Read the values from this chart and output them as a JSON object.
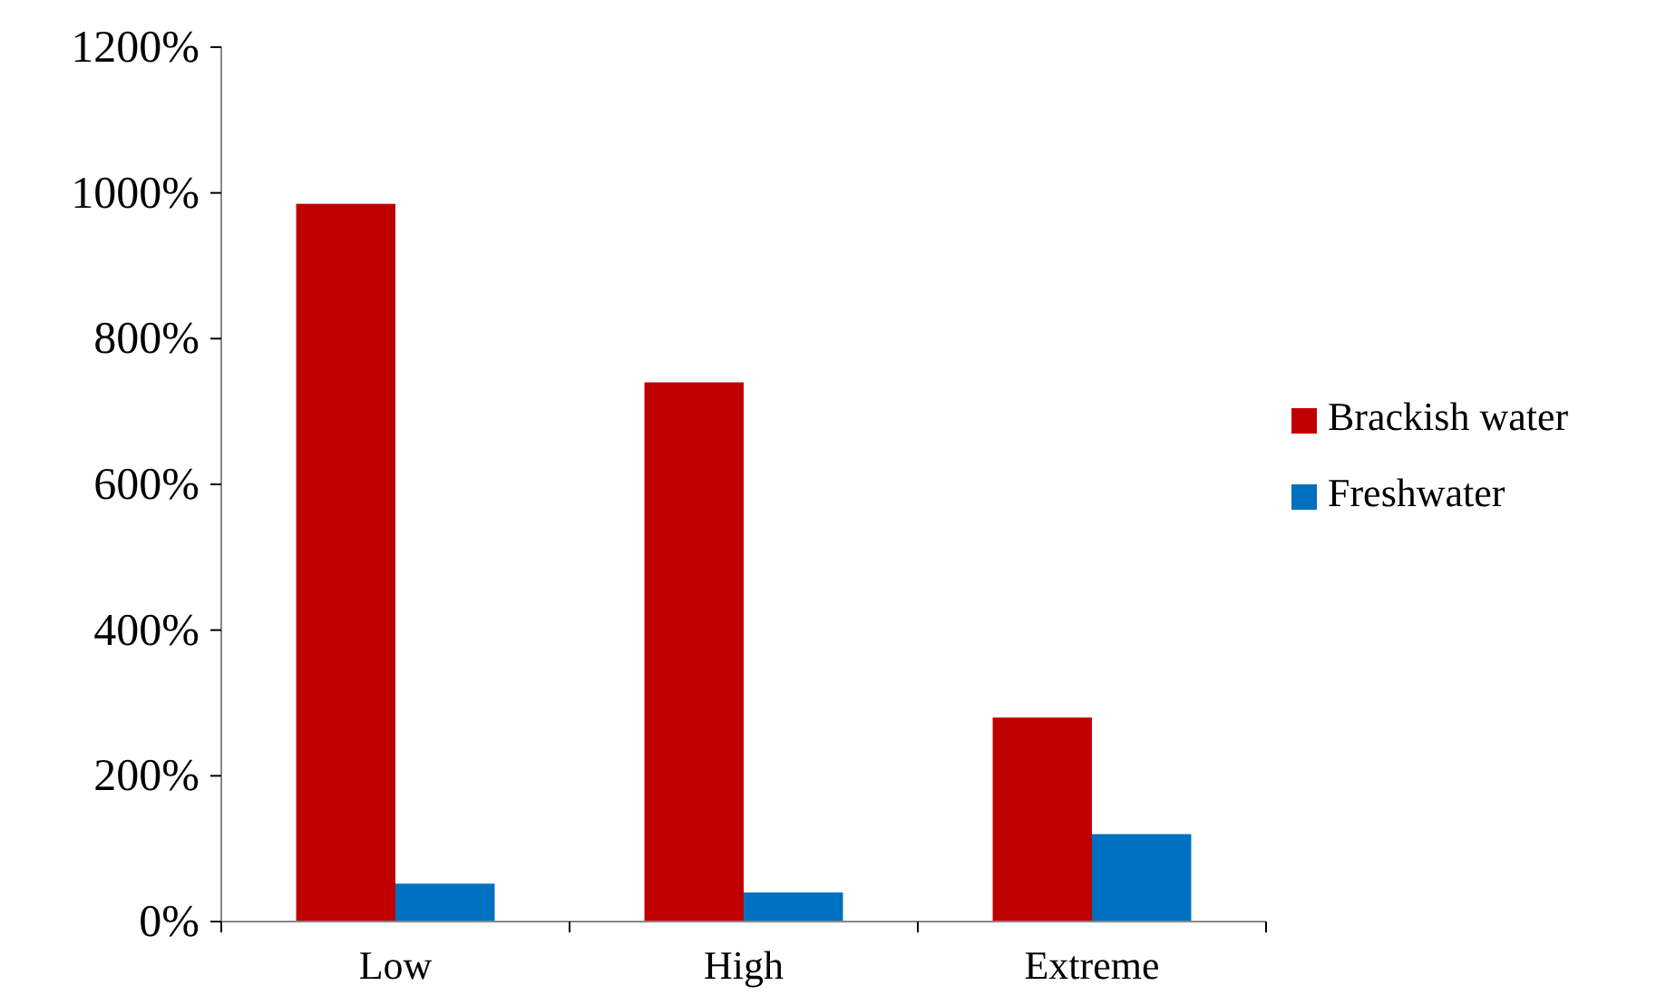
{
  "chart_data": {
    "type": "bar",
    "categories": [
      "Low",
      "High",
      "Extreme"
    ],
    "series": [
      {
        "name": "Brackish water",
        "color": "#c00000",
        "values": [
          985,
          740,
          280
        ]
      },
      {
        "name": "Freshwater",
        "color": "#0070c0",
        "values": [
          52,
          40,
          120
        ]
      }
    ],
    "ylim": [
      0,
      1200
    ],
    "yticks": [
      {
        "value": 0,
        "label": "0%"
      },
      {
        "value": 200,
        "label": "200%"
      },
      {
        "value": 400,
        "label": "400%"
      },
      {
        "value": 600,
        "label": "600%"
      },
      {
        "value": 800,
        "label": "800%"
      },
      {
        "value": 1000,
        "label": "1000%"
      },
      {
        "value": 1200,
        "label": "1200%"
      }
    ],
    "grid": false,
    "legend": "right"
  }
}
